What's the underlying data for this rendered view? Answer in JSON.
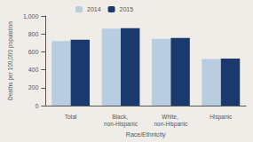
{
  "chart_data": {
    "type": "bar",
    "categories": [
      "Total",
      "Black, non-Hispanic",
      "White, non-Hispanic",
      "Hispanic"
    ],
    "series": [
      {
        "name": "2014",
        "color": "#b8cde0",
        "values": [
          720,
          860,
          745,
          520
        ]
      },
      {
        "name": "2015",
        "color": "#1a3a6e",
        "values": [
          735,
          865,
          755,
          525
        ]
      }
    ],
    "xlabel": "Race/Ethnicity",
    "ylabel": "Deaths per 100,000 population",
    "ylim": [
      0,
      1000
    ],
    "yticks": [
      0,
      200,
      400,
      600,
      800,
      {
        "value": 1000,
        "label": "1,000"
      }
    ],
    "grid": false,
    "legend": "upper left"
  }
}
